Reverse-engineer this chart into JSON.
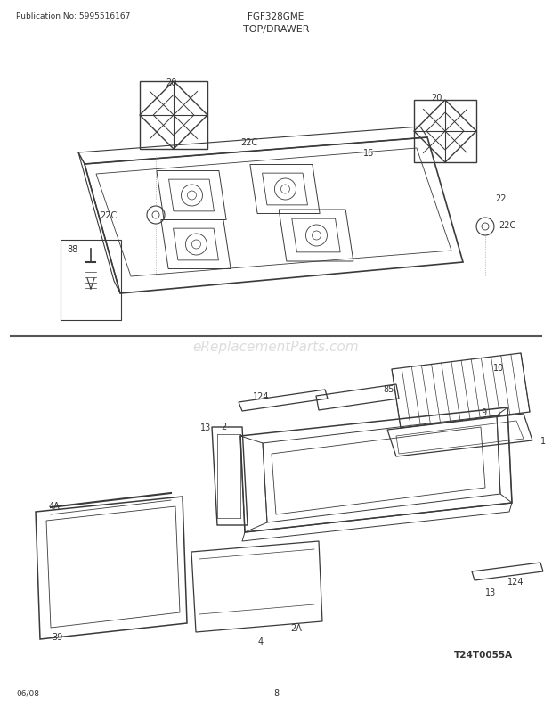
{
  "pub_no": "Publication No: 5995516167",
  "model": "FGF328GME",
  "section": "TOP/DRAWER",
  "page_num": "8",
  "date": "06/08",
  "diagram_id": "T24T0055A",
  "watermark": "eReplacementParts.com",
  "bg_color": "#ffffff",
  "text_color": "#333333",
  "lc": "#3a3a3a",
  "divider_color": "#555555"
}
